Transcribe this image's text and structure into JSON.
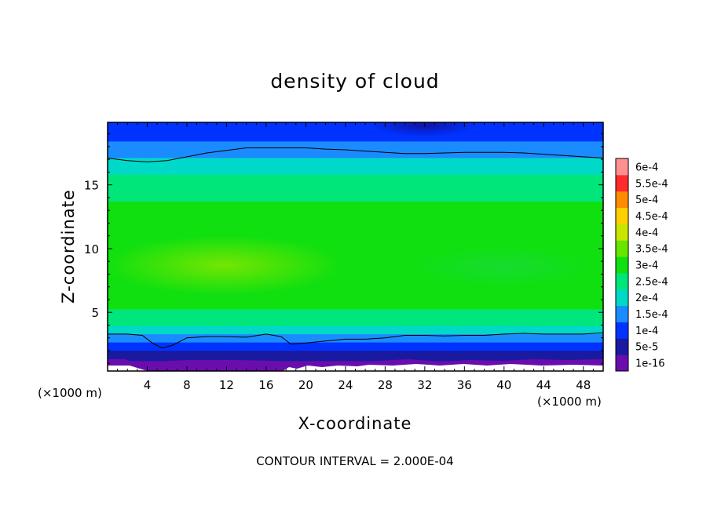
{
  "chart_data": {
    "type": "heatmap",
    "title": "density of cloud",
    "xlabel": "X-coordinate",
    "ylabel": "Z-coordinate",
    "x_unit": "(×1000 m)",
    "z_unit": "(×1000 m)",
    "xlim": [
      0,
      50
    ],
    "ylim": [
      0.4,
      19.9
    ],
    "x_ticks": [
      4,
      8,
      12,
      16,
      20,
      24,
      28,
      32,
      36,
      40,
      44,
      48
    ],
    "y_ticks": [
      5,
      10,
      15
    ],
    "footer": "CONTOUR INTERVAL = 2.000E-04",
    "colorbar": {
      "labels": [
        "1e-16",
        "5e-5",
        "1e-4",
        "1.5e-4",
        "2e-4",
        "2.5e-4",
        "3e-4",
        "3.5e-4",
        "4e-4",
        "4.5e-4",
        "5e-4",
        "5.5e-4",
        "6e-4"
      ],
      "colors": [
        "#6a0dad",
        "#1a1aa0",
        "#0033ff",
        "#1a8cff",
        "#00d9c8",
        "#00e67a",
        "#10e010",
        "#66e600",
        "#c8e600",
        "#ffd000",
        "#ff8c00",
        "#ff2a2a",
        "#ff9090"
      ]
    },
    "contour_levels": [
      0.0002
    ],
    "contour_lines": [
      {
        "level": 0.0002,
        "x": [
          0,
          2,
          4,
          6,
          8,
          10,
          12,
          14,
          16,
          18,
          20,
          22,
          24,
          26,
          28,
          30,
          32,
          34,
          36,
          38,
          40,
          42,
          44,
          46,
          48,
          50
        ],
        "z": [
          17.1,
          16.9,
          16.8,
          16.9,
          17.2,
          17.5,
          17.7,
          17.9,
          17.9,
          17.9,
          17.9,
          17.8,
          17.75,
          17.65,
          17.55,
          17.45,
          17.45,
          17.5,
          17.55,
          17.55,
          17.55,
          17.5,
          17.4,
          17.3,
          17.2,
          17.1
        ]
      },
      {
        "level": 0.0002,
        "x": [
          0,
          2,
          3.5,
          4.5,
          5.5,
          6.5,
          8,
          10,
          12,
          14,
          16,
          17.5,
          18.5,
          20,
          22,
          24,
          26,
          28,
          30,
          32,
          34,
          36,
          38,
          40,
          42,
          44,
          46,
          48,
          50
        ],
        "z": [
          3.3,
          3.3,
          3.2,
          2.6,
          2.2,
          2.4,
          3.0,
          3.1,
          3.1,
          3.05,
          3.3,
          3.1,
          2.5,
          2.6,
          2.75,
          2.9,
          2.9,
          3.0,
          3.2,
          3.2,
          3.15,
          3.2,
          3.2,
          3.3,
          3.35,
          3.3,
          3.3,
          3.3,
          3.4
        ]
      }
    ],
    "density_profile": {
      "z": [
        0.4,
        0.9,
        1.5,
        2.1,
        2.7,
        3.3,
        4.0,
        5.0,
        6.0,
        7.0,
        8.0,
        9.0,
        10.0,
        11.0,
        12.0,
        13.0,
        14.0,
        15.0,
        16.0,
        17.0,
        17.5,
        18.0,
        18.6,
        19.2,
        19.9
      ],
      "value": [
        1e-16,
        3e-05,
        7e-05,
        0.00011,
        0.000155,
        0.0002,
        0.000255,
        0.000295,
        0.000315,
        0.00033,
        0.00034,
        0.000342,
        0.000338,
        0.00033,
        0.00032,
        0.00031,
        0.000295,
        0.000275,
        0.000245,
        0.000205,
        0.000185,
        0.000165,
        0.00014,
        0.00012,
        0.0001
      ]
    }
  }
}
